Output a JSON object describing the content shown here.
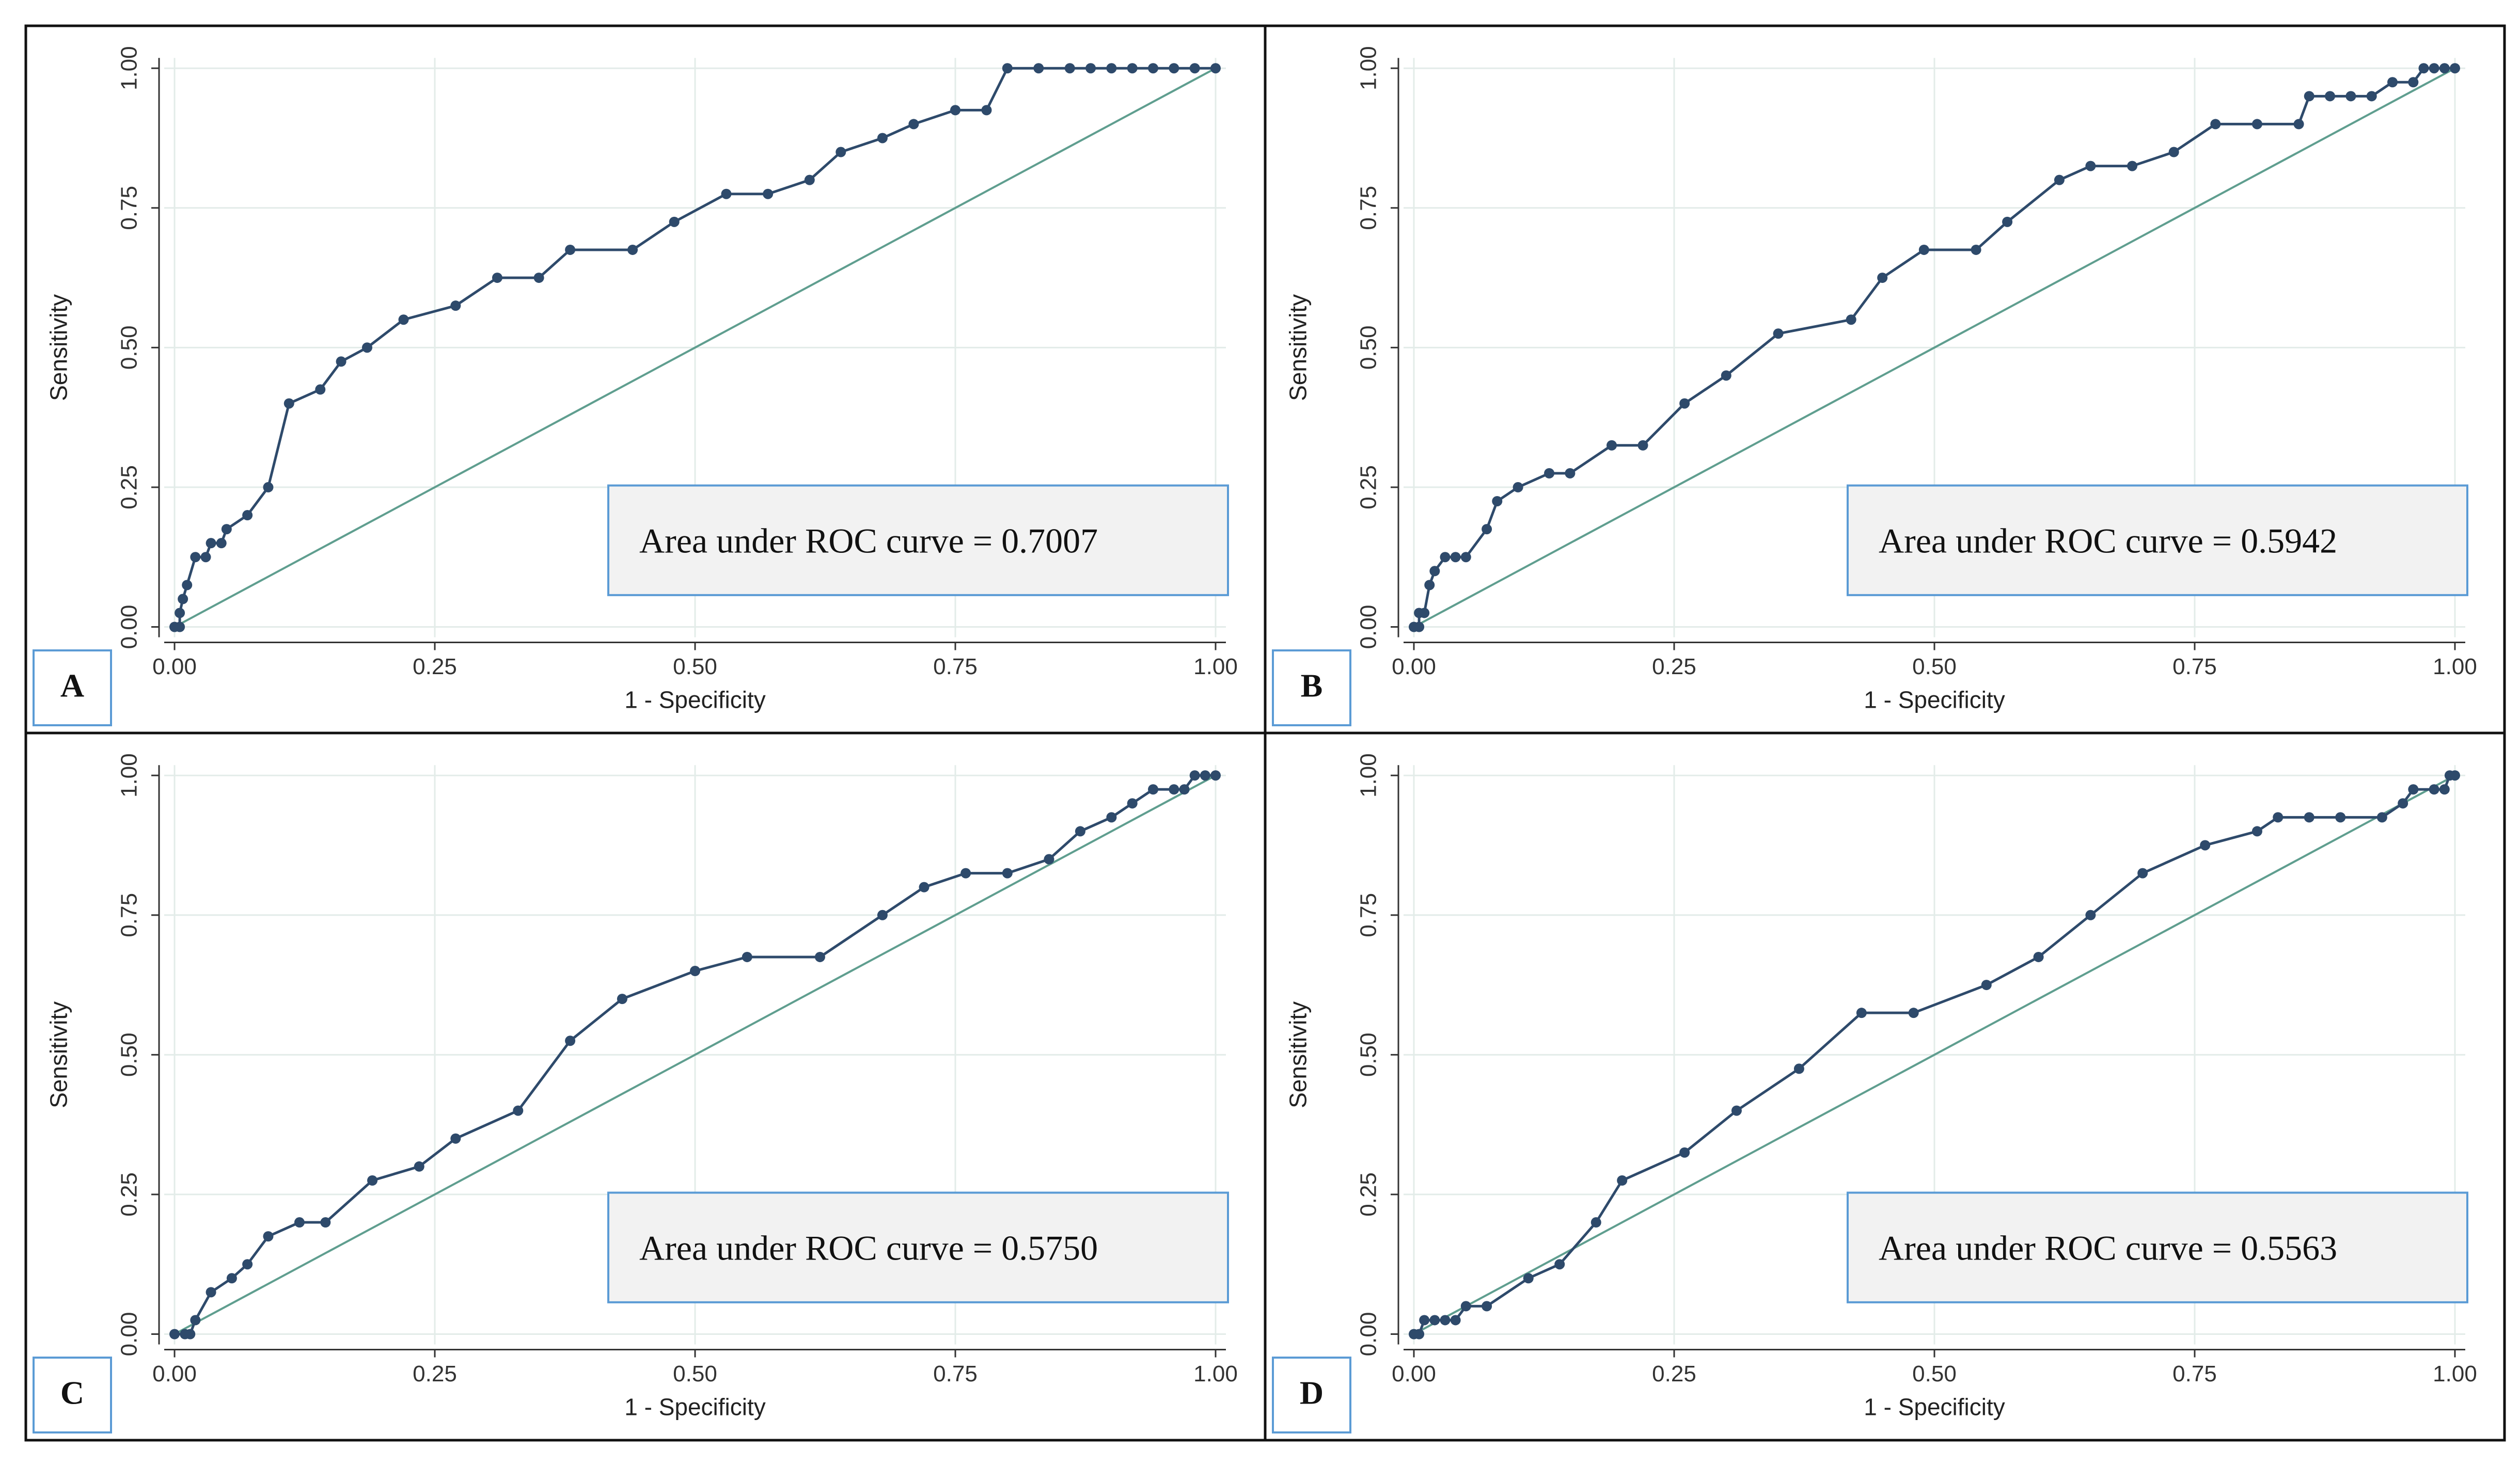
{
  "chart_data": [
    {
      "type": "line",
      "panel_label": "A",
      "annotation": "Area under ROC curve = 0.7007",
      "xlabel": "1 - Specificity",
      "ylabel": "Sensitivity",
      "xlim": [
        0,
        1
      ],
      "ylim": [
        0,
        1
      ],
      "xticks": [
        {
          "value": 0,
          "label": "0.00"
        },
        {
          "value": 0.25,
          "label": "0.25"
        },
        {
          "value": 0.5,
          "label": "0.50"
        },
        {
          "value": 0.75,
          "label": "0.75"
        },
        {
          "value": 1,
          "label": "1.00"
        }
      ],
      "yticks": [
        {
          "value": 0,
          "label": "0.00"
        },
        {
          "value": 0.25,
          "label": "0.25"
        },
        {
          "value": 0.5,
          "label": "0.50"
        },
        {
          "value": 0.75,
          "label": "0.75"
        },
        {
          "value": 1,
          "label": "1.00"
        }
      ],
      "grid": true,
      "reference_color": "#5f9e8f",
      "x": [
        0,
        0.005,
        0.005,
        0.008,
        0.012,
        0.02,
        0.03,
        0.035,
        0.045,
        0.05,
        0.07,
        0.09,
        0.11,
        0.14,
        0.16,
        0.185,
        0.22,
        0.27,
        0.31,
        0.35,
        0.38,
        0.44,
        0.48,
        0.53,
        0.57,
        0.61,
        0.64,
        0.68,
        0.71,
        0.75,
        0.78,
        0.8,
        0.83,
        0.86,
        0.88,
        0.9,
        0.92,
        0.94,
        0.96,
        0.98,
        1
      ],
      "series": [
        {
          "color": "#2e4a6b",
          "values": [
            0,
            0,
            0.025,
            0.05,
            0.075,
            0.125,
            0.125,
            0.15,
            0.15,
            0.175,
            0.2,
            0.25,
            0.4,
            0.425,
            0.475,
            0.5,
            0.55,
            0.575,
            0.625,
            0.625,
            0.675,
            0.675,
            0.725,
            0.775,
            0.775,
            0.8,
            0.85,
            0.875,
            0.9,
            0.925,
            0.925,
            1,
            1,
            1,
            1,
            1,
            1,
            1,
            1,
            1,
            1
          ]
        }
      ]
    },
    {
      "type": "line",
      "panel_label": "B",
      "annotation": "Area under ROC curve = 0.5942",
      "xlabel": "1 - Specificity",
      "ylabel": "Sensitivity",
      "xlim": [
        0,
        1
      ],
      "ylim": [
        0,
        1
      ],
      "xticks": [
        {
          "value": 0,
          "label": "0.00"
        },
        {
          "value": 0.25,
          "label": "0.25"
        },
        {
          "value": 0.5,
          "label": "0.50"
        },
        {
          "value": 0.75,
          "label": "0.75"
        },
        {
          "value": 1,
          "label": "1.00"
        }
      ],
      "yticks": [
        {
          "value": 0,
          "label": "0.00"
        },
        {
          "value": 0.25,
          "label": "0.25"
        },
        {
          "value": 0.5,
          "label": "0.50"
        },
        {
          "value": 0.75,
          "label": "0.75"
        },
        {
          "value": 1,
          "label": "1.00"
        }
      ],
      "grid": true,
      "reference_color": "#5f9e8f",
      "x": [
        0,
        0.005,
        0.005,
        0.01,
        0.015,
        0.02,
        0.03,
        0.04,
        0.05,
        0.07,
        0.08,
        0.1,
        0.13,
        0.15,
        0.19,
        0.22,
        0.26,
        0.3,
        0.35,
        0.42,
        0.45,
        0.49,
        0.54,
        0.57,
        0.62,
        0.65,
        0.69,
        0.73,
        0.77,
        0.81,
        0.85,
        0.86,
        0.88,
        0.9,
        0.92,
        0.94,
        0.96,
        0.97,
        0.98,
        0.99,
        1
      ],
      "series": [
        {
          "color": "#2e4a6b",
          "values": [
            0,
            0,
            0.025,
            0.025,
            0.075,
            0.1,
            0.125,
            0.125,
            0.125,
            0.175,
            0.225,
            0.25,
            0.275,
            0.275,
            0.325,
            0.325,
            0.4,
            0.45,
            0.525,
            0.55,
            0.625,
            0.675,
            0.675,
            0.725,
            0.8,
            0.825,
            0.825,
            0.85,
            0.9,
            0.9,
            0.9,
            0.95,
            0.95,
            0.95,
            0.95,
            0.975,
            0.975,
            1,
            1,
            1,
            1
          ]
        }
      ]
    },
    {
      "type": "line",
      "panel_label": "C",
      "annotation": "Area under ROC curve = 0.5750",
      "xlabel": "1 - Specificity",
      "ylabel": "Sensitivity",
      "xlim": [
        0,
        1
      ],
      "ylim": [
        0,
        1
      ],
      "xticks": [
        {
          "value": 0,
          "label": "0.00"
        },
        {
          "value": 0.25,
          "label": "0.25"
        },
        {
          "value": 0.5,
          "label": "0.50"
        },
        {
          "value": 0.75,
          "label": "0.75"
        },
        {
          "value": 1,
          "label": "1.00"
        }
      ],
      "yticks": [
        {
          "value": 0,
          "label": "0.00"
        },
        {
          "value": 0.25,
          "label": "0.25"
        },
        {
          "value": 0.5,
          "label": "0.50"
        },
        {
          "value": 0.75,
          "label": "0.75"
        },
        {
          "value": 1,
          "label": "1.00"
        }
      ],
      "grid": true,
      "reference_color": "#5f9e8f",
      "x": [
        0,
        0.01,
        0.015,
        0.02,
        0.035,
        0.055,
        0.07,
        0.09,
        0.12,
        0.145,
        0.19,
        0.235,
        0.27,
        0.33,
        0.38,
        0.43,
        0.5,
        0.55,
        0.62,
        0.68,
        0.72,
        0.76,
        0.8,
        0.84,
        0.87,
        0.9,
        0.92,
        0.94,
        0.96,
        0.97,
        0.98,
        0.99,
        1
      ],
      "series": [
        {
          "color": "#2e4a6b",
          "values": [
            0,
            0,
            0,
            0.025,
            0.075,
            0.1,
            0.125,
            0.175,
            0.2,
            0.2,
            0.275,
            0.3,
            0.35,
            0.4,
            0.525,
            0.6,
            0.65,
            0.675,
            0.675,
            0.75,
            0.8,
            0.825,
            0.825,
            0.85,
            0.9,
            0.925,
            0.95,
            0.975,
            0.975,
            0.975,
            1,
            1,
            1
          ]
        }
      ]
    },
    {
      "type": "line",
      "panel_label": "D",
      "annotation": "Area under ROC curve = 0.5563",
      "xlabel": "1 - Specificity",
      "ylabel": "Sensitivity",
      "xlim": [
        0,
        1
      ],
      "ylim": [
        0,
        1
      ],
      "xticks": [
        {
          "value": 0,
          "label": "0.00"
        },
        {
          "value": 0.25,
          "label": "0.25"
        },
        {
          "value": 0.5,
          "label": "0.50"
        },
        {
          "value": 0.75,
          "label": "0.75"
        },
        {
          "value": 1,
          "label": "1.00"
        }
      ],
      "yticks": [
        {
          "value": 0,
          "label": "0.00"
        },
        {
          "value": 0.25,
          "label": "0.25"
        },
        {
          "value": 0.5,
          "label": "0.50"
        },
        {
          "value": 0.75,
          "label": "0.75"
        },
        {
          "value": 1,
          "label": "1.00"
        }
      ],
      "grid": true,
      "reference_color": "#5f9e8f",
      "x": [
        0,
        0.005,
        0.01,
        0.02,
        0.03,
        0.04,
        0.05,
        0.07,
        0.11,
        0.14,
        0.175,
        0.2,
        0.26,
        0.31,
        0.37,
        0.43,
        0.48,
        0.55,
        0.6,
        0.65,
        0.7,
        0.76,
        0.81,
        0.83,
        0.86,
        0.89,
        0.93,
        0.95,
        0.96,
        0.98,
        0.99,
        0.995,
        1
      ],
      "series": [
        {
          "color": "#2e4a6b",
          "values": [
            0,
            0,
            0.025,
            0.025,
            0.025,
            0.025,
            0.05,
            0.05,
            0.1,
            0.125,
            0.2,
            0.275,
            0.325,
            0.4,
            0.475,
            0.575,
            0.575,
            0.625,
            0.675,
            0.75,
            0.825,
            0.875,
            0.9,
            0.925,
            0.925,
            0.925,
            0.925,
            0.95,
            0.975,
            0.975,
            0.975,
            1,
            1
          ]
        }
      ]
    }
  ]
}
